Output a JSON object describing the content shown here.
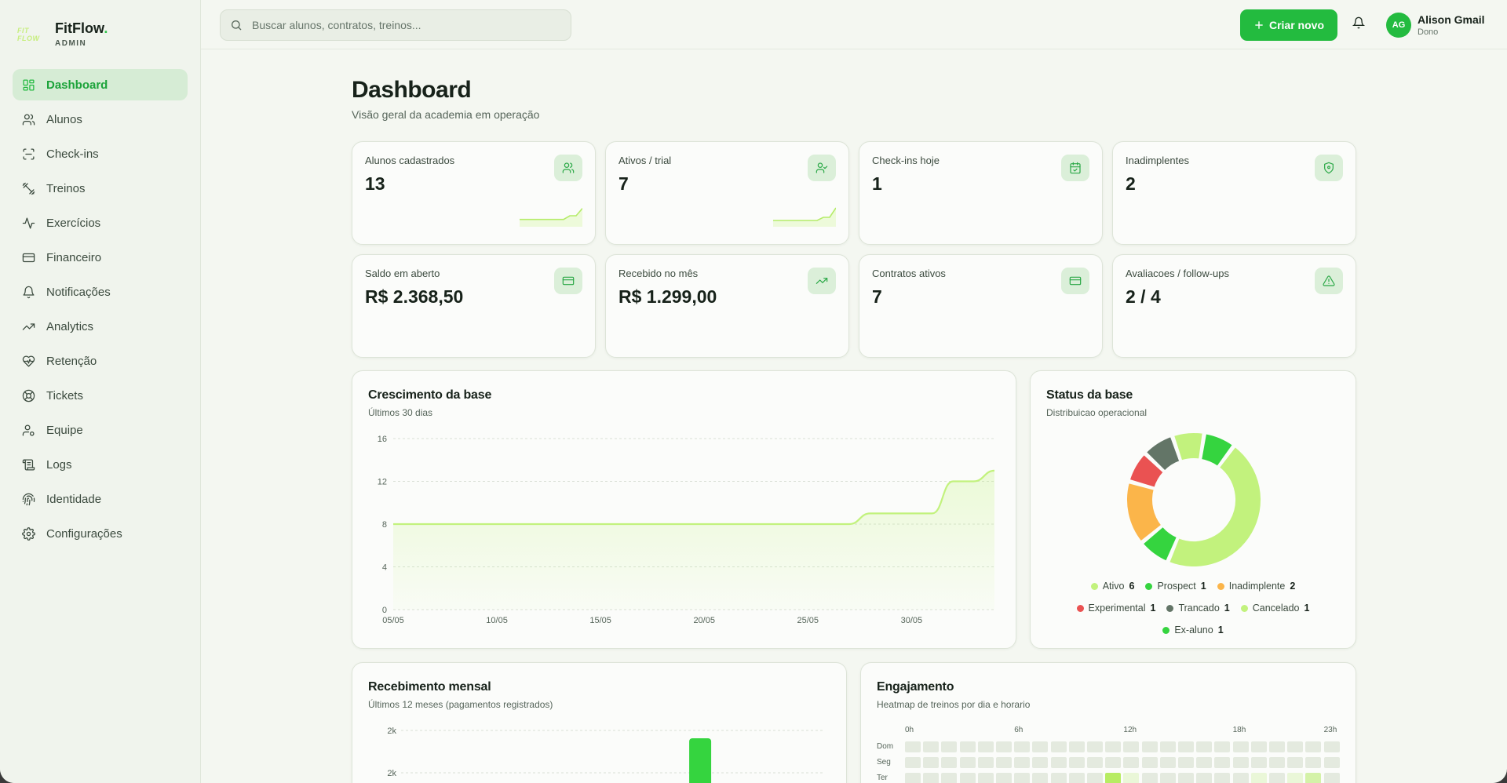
{
  "brand": {
    "logo_text": "FIT FLOW",
    "name": "FitFlow",
    "name_dot": ".",
    "subtitle": "ADMIN"
  },
  "sidebar": {
    "items": [
      {
        "label": "Dashboard",
        "icon": "grid-icon",
        "active": true
      },
      {
        "label": "Alunos",
        "icon": "users-icon"
      },
      {
        "label": "Check-ins",
        "icon": "scan-icon"
      },
      {
        "label": "Treinos",
        "icon": "dumbbell-icon"
      },
      {
        "label": "Exercícios",
        "icon": "activity-icon"
      },
      {
        "label": "Financeiro",
        "icon": "credit-card-icon"
      },
      {
        "label": "Notificações",
        "icon": "bell-icon"
      },
      {
        "label": "Analytics",
        "icon": "trending-up-icon"
      },
      {
        "label": "Retenção",
        "icon": "heart-pulse-icon"
      },
      {
        "label": "Tickets",
        "icon": "life-buoy-icon"
      },
      {
        "label": "Equipe",
        "icon": "user-cog-icon"
      },
      {
        "label": "Logs",
        "icon": "scroll-icon"
      },
      {
        "label": "Identidade",
        "icon": "fingerprint-icon"
      },
      {
        "label": "Configurações",
        "icon": "settings-icon"
      }
    ]
  },
  "topbar": {
    "search_placeholder": "Buscar alunos, contratos, treinos...",
    "create_label": "Criar novo",
    "user": {
      "initials": "AG",
      "name": "Alison Gmail",
      "role": "Dono"
    }
  },
  "page": {
    "title": "Dashboard",
    "subtitle": "Visão geral da academia em operação"
  },
  "stats": [
    {
      "label": "Alunos cadastrados",
      "value": "13",
      "icon": "users-icon",
      "spark": [
        2,
        2,
        2,
        2,
        2,
        2,
        2,
        2,
        3,
        3,
        5
      ]
    },
    {
      "label": "Ativos / trial",
      "value": "7",
      "icon": "user-check-icon",
      "spark": [
        2,
        2,
        2,
        2,
        2,
        2,
        2,
        2,
        3,
        3,
        6
      ]
    },
    {
      "label": "Check-ins hoje",
      "value": "1",
      "icon": "calendar-check-icon"
    },
    {
      "label": "Inadimplentes",
      "value": "2",
      "icon": "shield-icon"
    },
    {
      "label": "Saldo em aberto",
      "value": "R$ 2.368,50",
      "icon": "credit-card-icon"
    },
    {
      "label": "Recebido no mês",
      "value": "R$ 1.299,00",
      "icon": "trending-up-icon"
    },
    {
      "label": "Contratos ativos",
      "value": "7",
      "icon": "credit-card-icon"
    },
    {
      "label": "Avaliacoes / follow-ups",
      "value": "2 / 4",
      "icon": "alert-triangle-icon"
    }
  ],
  "growth": {
    "title": "Crescimento da base",
    "subtitle": "Últimos 30 dias",
    "chart_data": {
      "type": "area",
      "x_tick_labels": [
        "05/05",
        "10/05",
        "15/05",
        "20/05",
        "25/05",
        "30/05"
      ],
      "y_ticks": [
        0,
        4,
        8,
        12,
        16
      ],
      "ylim": [
        0,
        16
      ],
      "x": [
        "05/05",
        "06/05",
        "07/05",
        "08/05",
        "09/05",
        "10/05",
        "11/05",
        "12/05",
        "13/05",
        "14/05",
        "15/05",
        "16/05",
        "17/05",
        "18/05",
        "19/05",
        "20/05",
        "21/05",
        "22/05",
        "23/05",
        "24/05",
        "25/05",
        "26/05",
        "27/05",
        "28/05",
        "29/05",
        "30/05",
        "31/05",
        "01/06",
        "02/06",
        "03/06"
      ],
      "values": [
        8,
        8,
        8,
        8,
        8,
        8,
        8,
        8,
        8,
        8,
        8,
        8,
        8,
        8,
        8,
        8,
        8,
        8,
        8,
        8,
        8,
        8,
        8,
        9,
        9,
        9,
        9,
        12,
        12,
        13
      ],
      "color": "#c2f27d"
    }
  },
  "status": {
    "title": "Status da base",
    "subtitle": "Distribuicao operacional",
    "chart_data": {
      "type": "pie",
      "categories": [
        "Ativo",
        "Prospect",
        "Inadimplente",
        "Experimental",
        "Trancado",
        "Cancelado",
        "Ex-aluno"
      ],
      "values": [
        6,
        1,
        2,
        1,
        1,
        1,
        1
      ],
      "colors": [
        "#c2f27d",
        "#35d43f",
        "#fbb54a",
        "#ea5252",
        "#637567",
        "#c2f27d",
        "#35d43f"
      ]
    }
  },
  "monthly": {
    "title": "Recebimento mensal",
    "subtitle": "Últimos 12 meses (pagamentos registrados)",
    "chart_data": {
      "type": "bar",
      "y_tick_labels": [
        "2k",
        "2k"
      ],
      "values": [
        0,
        0,
        0,
        0,
        0,
        0,
        0,
        0,
        1299,
        0,
        0,
        0
      ],
      "color": "#35d43f"
    }
  },
  "engagement": {
    "title": "Engajamento",
    "subtitle": "Heatmap de treinos por dia e horario",
    "chart_data": {
      "type": "heatmap",
      "hour_labels": [
        "0h",
        "6h",
        "12h",
        "18h",
        "23h"
      ],
      "day_labels": [
        "Dom",
        "Seg",
        "Ter"
      ],
      "rows": [
        [
          0,
          0,
          0,
          0,
          0,
          0,
          0,
          0,
          0,
          0,
          0,
          0,
          0,
          0,
          0,
          0,
          0,
          0,
          0,
          0,
          0,
          0,
          0,
          0
        ],
        [
          0,
          0,
          0,
          0,
          0,
          0,
          0,
          0,
          0,
          0,
          0,
          0,
          0,
          0,
          0,
          0,
          0,
          0,
          0,
          0,
          0,
          0,
          0,
          0
        ],
        [
          0,
          0,
          0,
          0,
          0,
          0,
          0,
          0,
          0,
          0,
          0,
          3,
          1,
          0,
          0,
          0,
          0,
          0,
          0,
          1,
          0,
          1,
          2,
          0
        ]
      ]
    }
  }
}
